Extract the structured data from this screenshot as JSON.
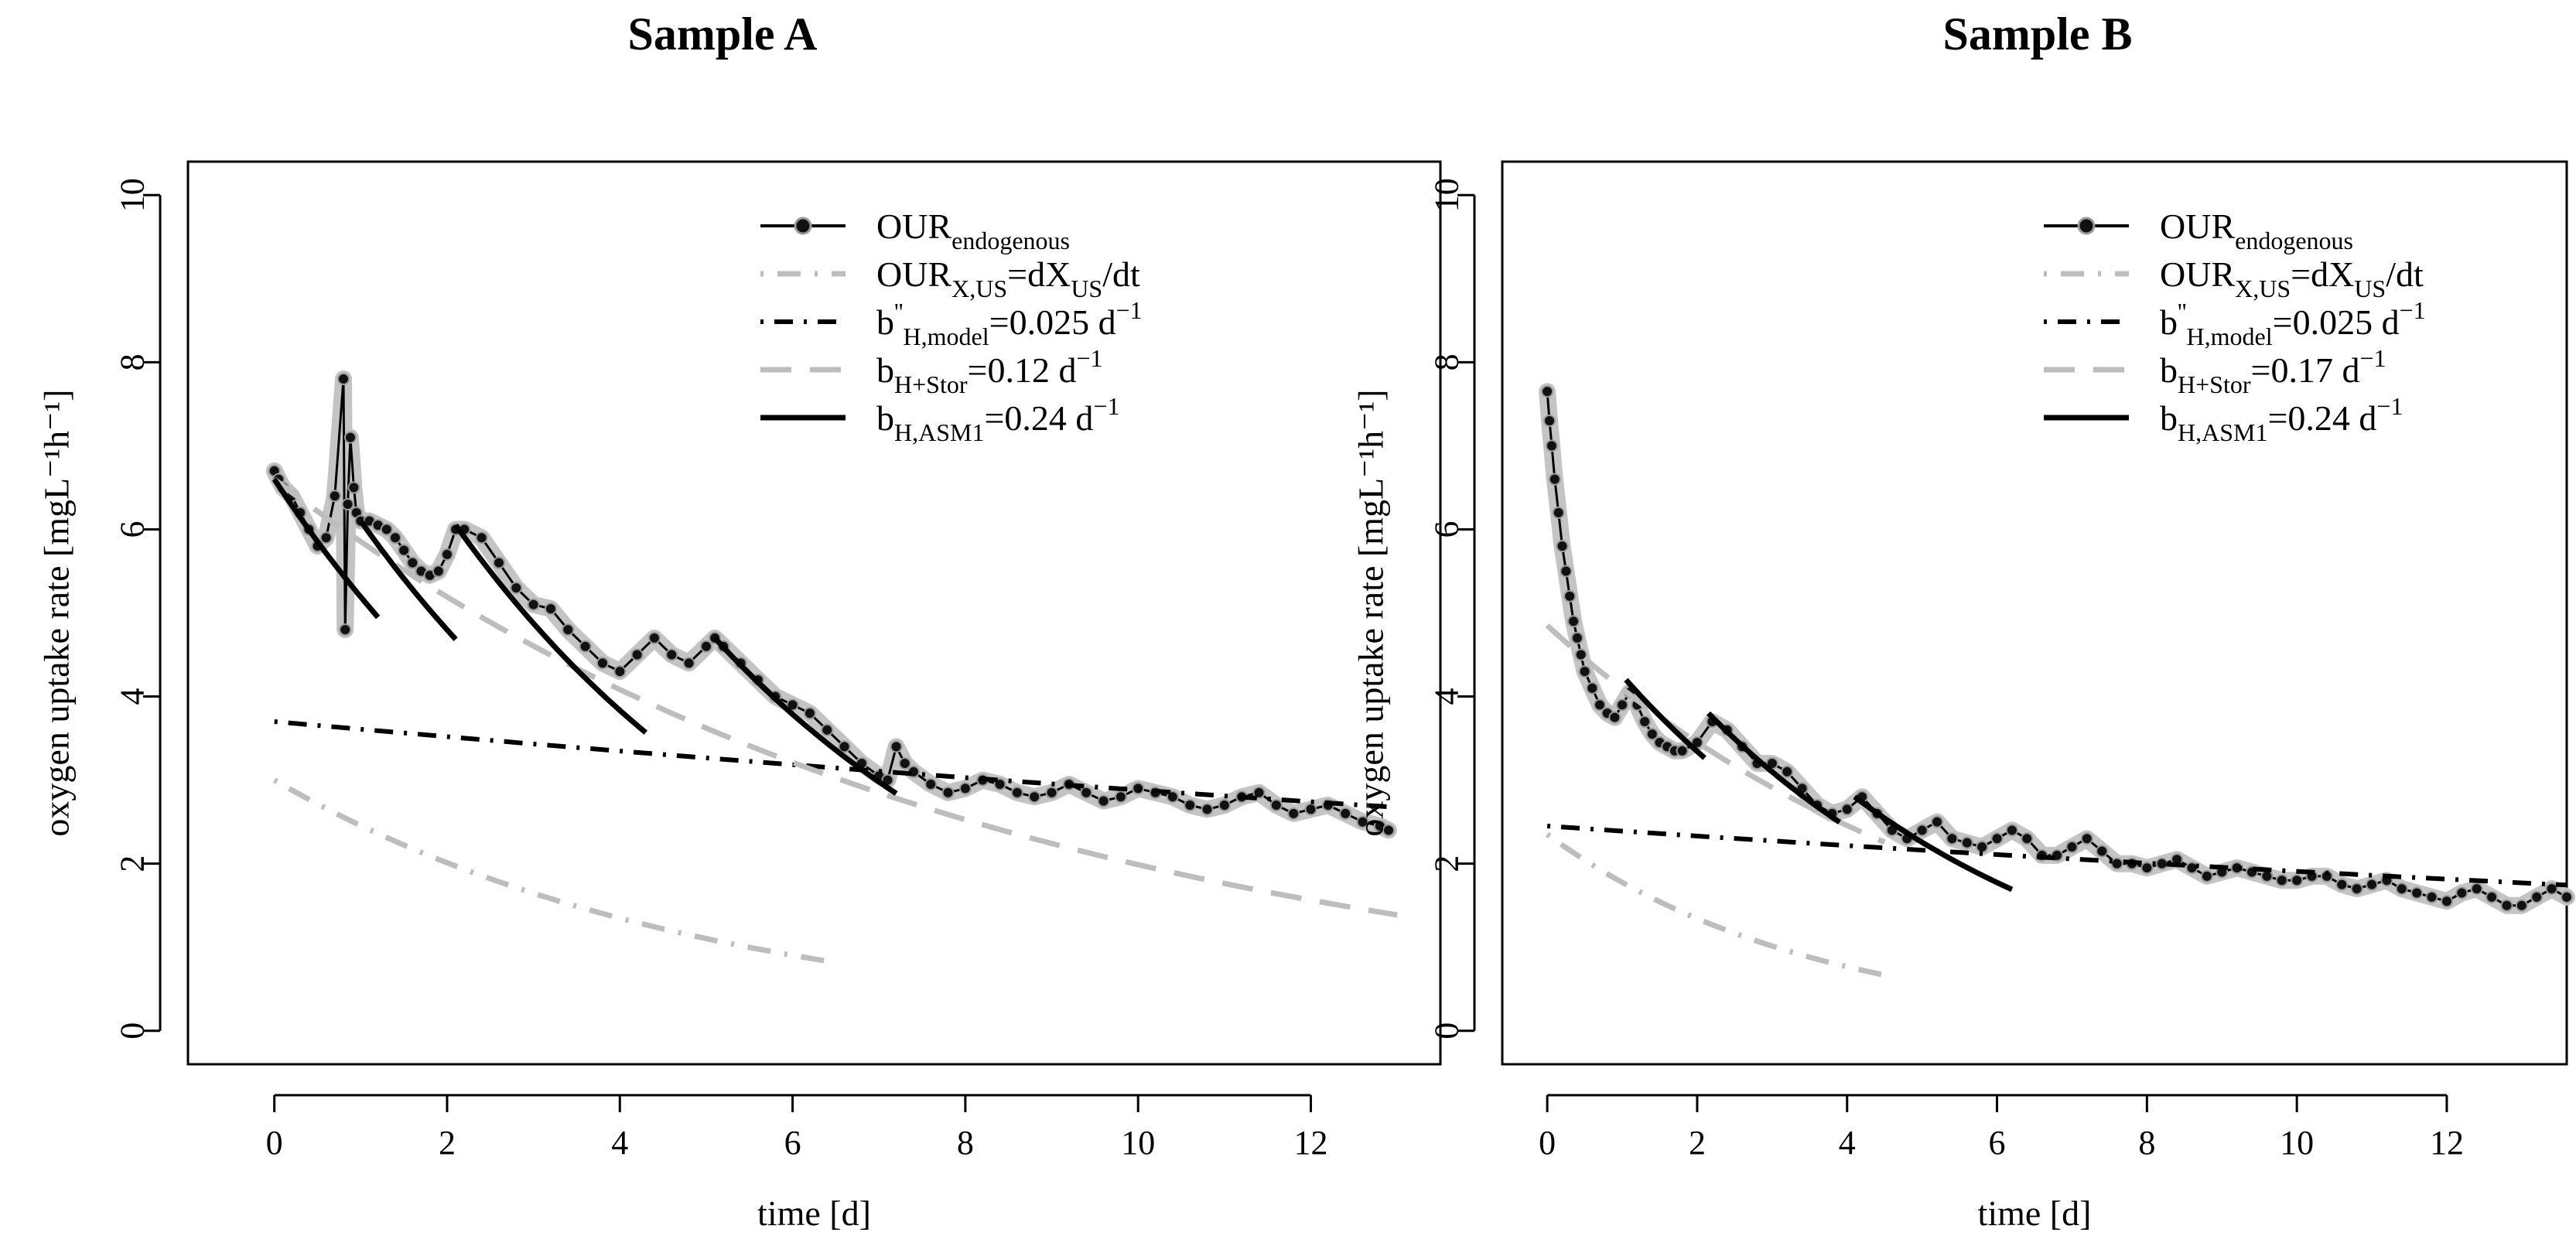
{
  "chart_data": [
    {
      "type": "line",
      "title": "Sample A",
      "xlabel": "time [d]",
      "ylabel": "oxygen uptake rate [mgL⁻¹h⁻¹]",
      "xlim": [
        -1,
        13.5
      ],
      "ylim": [
        -0.4,
        10.4
      ],
      "xticks": [
        0,
        2,
        4,
        6,
        8,
        10,
        12
      ],
      "yticks": [
        0,
        2,
        4,
        6,
        8,
        10
      ],
      "legend_position": "top-right",
      "legend": [
        {
          "key": "our",
          "base": "OUR",
          "sub": "endogenous",
          "rest": ""
        },
        {
          "key": "xus",
          "base": "OUR",
          "sub": "X,US",
          "rest": "=dX",
          "sub2": "US",
          "rest2": "/dt"
        },
        {
          "key": "model",
          "base": "b",
          "sup": "''",
          "sub": "H,model",
          "rest": "=0.025 d",
          "exp": "−1"
        },
        {
          "key": "stor",
          "base": "b",
          "sub": "H+Stor",
          "rest": "=0.12 d",
          "exp": "−1"
        },
        {
          "key": "asm1",
          "base": "b",
          "sub": "H,ASM1",
          "rest": "=0.24 d",
          "exp": "−1"
        }
      ],
      "series": {
        "our_endogenous": [
          [
            0,
            6.7
          ],
          [
            0.05,
            6.6
          ],
          [
            0.1,
            6.5
          ],
          [
            0.2,
            6.4
          ],
          [
            0.3,
            6.2
          ],
          [
            0.4,
            6.0
          ],
          [
            0.5,
            5.8
          ],
          [
            0.6,
            5.9
          ],
          [
            0.7,
            6.4
          ],
          [
            0.8,
            7.8
          ],
          [
            0.82,
            4.8
          ],
          [
            0.85,
            6.3
          ],
          [
            0.88,
            7.1
          ],
          [
            0.92,
            6.5
          ],
          [
            0.95,
            6.2
          ],
          [
            1.0,
            6.1
          ],
          [
            1.1,
            6.1
          ],
          [
            1.2,
            6.05
          ],
          [
            1.3,
            6.0
          ],
          [
            1.4,
            5.9
          ],
          [
            1.5,
            5.75
          ],
          [
            1.6,
            5.6
          ],
          [
            1.7,
            5.5
          ],
          [
            1.8,
            5.45
          ],
          [
            1.9,
            5.5
          ],
          [
            2.0,
            5.7
          ],
          [
            2.1,
            6.0
          ],
          [
            2.2,
            6.0
          ],
          [
            2.4,
            5.9
          ],
          [
            2.6,
            5.6
          ],
          [
            2.8,
            5.3
          ],
          [
            3.0,
            5.1
          ],
          [
            3.2,
            5.05
          ],
          [
            3.4,
            4.8
          ],
          [
            3.6,
            4.6
          ],
          [
            3.8,
            4.4
          ],
          [
            4.0,
            4.3
          ],
          [
            4.2,
            4.5
          ],
          [
            4.4,
            4.7
          ],
          [
            4.6,
            4.5
          ],
          [
            4.8,
            4.4
          ],
          [
            5.0,
            4.6
          ],
          [
            5.1,
            4.7
          ],
          [
            5.2,
            4.6
          ],
          [
            5.4,
            4.4
          ],
          [
            5.6,
            4.2
          ],
          [
            5.8,
            4.0
          ],
          [
            6.0,
            3.9
          ],
          [
            6.2,
            3.8
          ],
          [
            6.4,
            3.6
          ],
          [
            6.6,
            3.4
          ],
          [
            6.8,
            3.2
          ],
          [
            7.0,
            3.05
          ],
          [
            7.1,
            3.0
          ],
          [
            7.2,
            3.4
          ],
          [
            7.3,
            3.2
          ],
          [
            7.4,
            3.1
          ],
          [
            7.6,
            2.95
          ],
          [
            7.8,
            2.85
          ],
          [
            8.0,
            2.9
          ],
          [
            8.2,
            3.0
          ],
          [
            8.4,
            2.95
          ],
          [
            8.6,
            2.85
          ],
          [
            8.8,
            2.8
          ],
          [
            9.0,
            2.85
          ],
          [
            9.2,
            2.95
          ],
          [
            9.4,
            2.85
          ],
          [
            9.6,
            2.75
          ],
          [
            9.8,
            2.8
          ],
          [
            10.0,
            2.9
          ],
          [
            10.2,
            2.85
          ],
          [
            10.4,
            2.8
          ],
          [
            10.6,
            2.7
          ],
          [
            10.8,
            2.65
          ],
          [
            11.0,
            2.7
          ],
          [
            11.2,
            2.8
          ],
          [
            11.4,
            2.85
          ],
          [
            11.6,
            2.7
          ],
          [
            11.8,
            2.6
          ],
          [
            12.0,
            2.65
          ],
          [
            12.2,
            2.7
          ],
          [
            12.4,
            2.6
          ],
          [
            12.6,
            2.5
          ],
          [
            12.8,
            2.45
          ],
          [
            12.9,
            2.4
          ]
        ],
        "our_xus_start": [
          0,
          3.0
        ],
        "our_xus_end": 6.4,
        "our_xus_rate": 0.2,
        "model_start": [
          0,
          3.7
        ],
        "model_end": 13,
        "model_rate": 0.025,
        "stor_start": [
          0,
          6.6
        ],
        "stor_end": 13,
        "stor_rate": 0.12,
        "asm1_segments": [
          [
            0,
            6.6,
            1.2
          ],
          [
            1.0,
            6.1,
            2.1
          ],
          [
            2.1,
            6.05,
            4.3
          ],
          [
            5.1,
            4.7,
            7.2
          ]
        ],
        "asm1_rate": 0.24
      }
    },
    {
      "type": "line",
      "title": "Sample B",
      "xlabel": "time [d]",
      "ylabel": "oxygen uptake rate [mgL⁻¹h⁻¹]",
      "xlim": [
        -0.6,
        13.6
      ],
      "ylim": [
        -0.4,
        10.4
      ],
      "xticks": [
        0,
        2,
        4,
        6,
        8,
        10,
        12
      ],
      "yticks": [
        0,
        2,
        4,
        6,
        8,
        10
      ],
      "legend_position": "top-right",
      "legend": [
        {
          "key": "our",
          "base": "OUR",
          "sub": "endogenous",
          "rest": ""
        },
        {
          "key": "xus",
          "base": "OUR",
          "sub": "X,US",
          "rest": "=dX",
          "sub2": "US",
          "rest2": "/dt"
        },
        {
          "key": "model",
          "base": "b",
          "sup": "''",
          "sub": "H,model",
          "rest": "=0.025 d",
          "exp": "−1"
        },
        {
          "key": "stor",
          "base": "b",
          "sub": "H+Stor",
          "rest": "=0.17 d",
          "exp": "−1"
        },
        {
          "key": "asm1",
          "base": "b",
          "sub": "H,ASM1",
          "rest": "=0.24 d",
          "exp": "−1"
        }
      ],
      "series": {
        "our_endogenous": [
          [
            0,
            7.65
          ],
          [
            0.03,
            7.3
          ],
          [
            0.06,
            7.0
          ],
          [
            0.1,
            6.6
          ],
          [
            0.15,
            6.2
          ],
          [
            0.2,
            5.8
          ],
          [
            0.25,
            5.5
          ],
          [
            0.3,
            5.2
          ],
          [
            0.35,
            4.9
          ],
          [
            0.4,
            4.7
          ],
          [
            0.45,
            4.5
          ],
          [
            0.5,
            4.3
          ],
          [
            0.6,
            4.1
          ],
          [
            0.7,
            3.9
          ],
          [
            0.8,
            3.8
          ],
          [
            0.9,
            3.75
          ],
          [
            1.0,
            3.9
          ],
          [
            1.1,
            4.05
          ],
          [
            1.2,
            3.9
          ],
          [
            1.3,
            3.7
          ],
          [
            1.4,
            3.55
          ],
          [
            1.5,
            3.45
          ],
          [
            1.6,
            3.4
          ],
          [
            1.7,
            3.35
          ],
          [
            1.8,
            3.35
          ],
          [
            2.0,
            3.45
          ],
          [
            2.2,
            3.7
          ],
          [
            2.4,
            3.6
          ],
          [
            2.6,
            3.4
          ],
          [
            2.8,
            3.2
          ],
          [
            3.0,
            3.2
          ],
          [
            3.2,
            3.1
          ],
          [
            3.4,
            2.9
          ],
          [
            3.6,
            2.7
          ],
          [
            3.8,
            2.6
          ],
          [
            4.0,
            2.65
          ],
          [
            4.2,
            2.8
          ],
          [
            4.4,
            2.6
          ],
          [
            4.6,
            2.4
          ],
          [
            4.8,
            2.3
          ],
          [
            5.0,
            2.4
          ],
          [
            5.2,
            2.5
          ],
          [
            5.4,
            2.3
          ],
          [
            5.6,
            2.25
          ],
          [
            5.8,
            2.2
          ],
          [
            6.0,
            2.3
          ],
          [
            6.2,
            2.4
          ],
          [
            6.4,
            2.3
          ],
          [
            6.6,
            2.1
          ],
          [
            6.8,
            2.1
          ],
          [
            7.0,
            2.2
          ],
          [
            7.2,
            2.3
          ],
          [
            7.4,
            2.15
          ],
          [
            7.6,
            2.0
          ],
          [
            7.8,
            2.0
          ],
          [
            8.0,
            1.95
          ],
          [
            8.2,
            2.0
          ],
          [
            8.4,
            2.05
          ],
          [
            8.6,
            1.95
          ],
          [
            8.8,
            1.85
          ],
          [
            9.0,
            1.9
          ],
          [
            9.2,
            1.95
          ],
          [
            9.4,
            1.9
          ],
          [
            9.6,
            1.85
          ],
          [
            9.8,
            1.8
          ],
          [
            10.0,
            1.8
          ],
          [
            10.2,
            1.85
          ],
          [
            10.4,
            1.85
          ],
          [
            10.6,
            1.75
          ],
          [
            10.8,
            1.7
          ],
          [
            11.0,
            1.75
          ],
          [
            11.2,
            1.8
          ],
          [
            11.4,
            1.7
          ],
          [
            11.6,
            1.65
          ],
          [
            11.8,
            1.6
          ],
          [
            12.0,
            1.55
          ],
          [
            12.2,
            1.65
          ],
          [
            12.4,
            1.7
          ],
          [
            12.6,
            1.6
          ],
          [
            12.8,
            1.5
          ],
          [
            13.0,
            1.5
          ],
          [
            13.2,
            1.6
          ],
          [
            13.4,
            1.7
          ],
          [
            13.6,
            1.6
          ]
        ],
        "our_xus_start": [
          0,
          2.35
        ],
        "our_xus_end": 4.6,
        "our_xus_rate": 0.28,
        "model_start": [
          0,
          2.45
        ],
        "model_end": 13.6,
        "model_rate": 0.025,
        "stor_start": [
          0,
          4.85
        ],
        "stor_end": 4.5,
        "stor_rate": 0.17,
        "asm1_segments": [
          [
            1.05,
            4.2,
            2.1
          ],
          [
            2.15,
            3.8,
            3.9
          ],
          [
            4.1,
            2.8,
            6.2
          ]
        ],
        "asm1_rate": 0.24
      }
    }
  ]
}
